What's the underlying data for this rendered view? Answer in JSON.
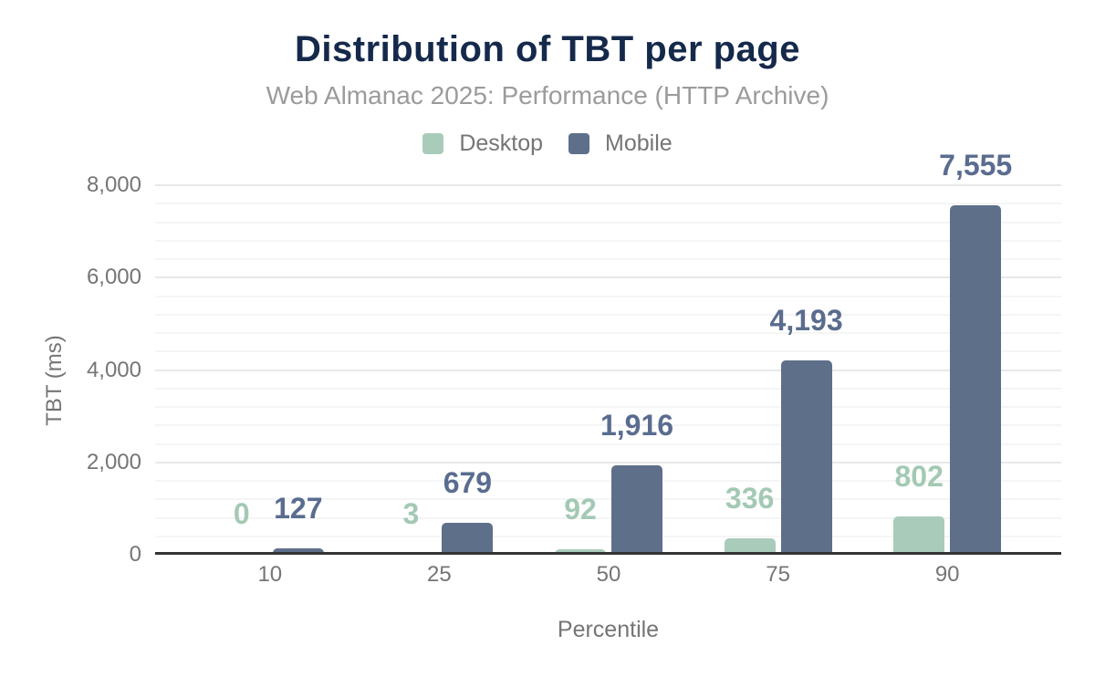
{
  "chart_data": {
    "type": "bar",
    "title": "Distribution of TBT per page",
    "subtitle": "Web Almanac 2025: Performance (HTTP Archive)",
    "xlabel": "Percentile",
    "ylabel": "TBT (ms)",
    "categories": [
      "10",
      "25",
      "50",
      "75",
      "90"
    ],
    "series": [
      {
        "name": "Desktop",
        "color": "#a9ccba",
        "label_color": "#a3c9b4",
        "values": [
          0,
          3,
          92,
          336,
          802
        ],
        "labels": [
          "0",
          "3",
          "92",
          "336",
          "802"
        ]
      },
      {
        "name": "Mobile",
        "color": "#5e6f8a",
        "label_color": "#5a6c8f",
        "values": [
          127,
          679,
          1916,
          4193,
          7555
        ],
        "labels": [
          "127",
          "679",
          "1,916",
          "4,193",
          "7,555"
        ]
      }
    ],
    "ylim": [
      0,
      8000
    ],
    "yticks": [
      {
        "value": 0,
        "label": "0"
      },
      {
        "value": 2000,
        "label": "2,000"
      },
      {
        "value": 4000,
        "label": "4,000"
      },
      {
        "value": 6000,
        "label": "6,000"
      },
      {
        "value": 8000,
        "label": "8,000"
      }
    ],
    "minor_gridline_step": 400,
    "grid": "on",
    "legend_position": "top"
  },
  "colors": {
    "background": "#ffffff",
    "title": "#15294b",
    "subtitle": "#9b9b9b",
    "axis_text": "#757575",
    "axis_line": "#333333",
    "gridline_major": "#e8e8e8",
    "gridline_minor": "#f5f5f5"
  }
}
